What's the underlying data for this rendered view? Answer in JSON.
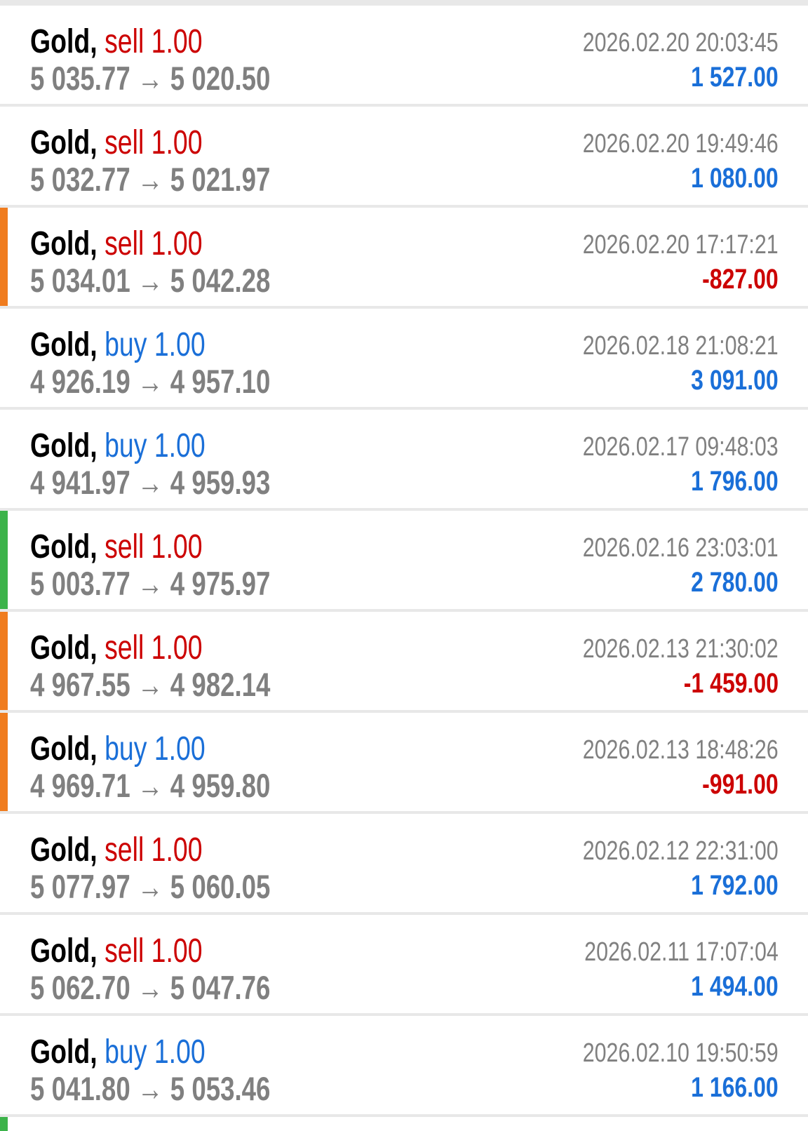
{
  "colors": {
    "buy": "#1a6fd8",
    "sell": "#cc0000",
    "profit": "#1a6fd8",
    "loss": "#cc0000",
    "marker_orange": "#f07c1e",
    "marker_green": "#3cb34a"
  },
  "arrow": "→",
  "trades": [
    {
      "symbol": "Gold,",
      "side": "sell",
      "volume": "1.00",
      "open": "5 035.77",
      "close": "5 020.50",
      "time": "2026.02.20 20:03:45",
      "profit": "1 527.00",
      "marker": null
    },
    {
      "symbol": "Gold,",
      "side": "sell",
      "volume": "1.00",
      "open": "5 032.77",
      "close": "5 021.97",
      "time": "2026.02.20 19:49:46",
      "profit": "1 080.00",
      "marker": null
    },
    {
      "symbol": "Gold,",
      "side": "sell",
      "volume": "1.00",
      "open": "5 034.01",
      "close": "5 042.28",
      "time": "2026.02.20 17:17:21",
      "profit": "-827.00",
      "marker": "orange"
    },
    {
      "symbol": "Gold,",
      "side": "buy",
      "volume": "1.00",
      "open": "4 926.19",
      "close": "4 957.10",
      "time": "2026.02.18 21:08:21",
      "profit": "3 091.00",
      "marker": null
    },
    {
      "symbol": "Gold,",
      "side": "buy",
      "volume": "1.00",
      "open": "4 941.97",
      "close": "4 959.93",
      "time": "2026.02.17 09:48:03",
      "profit": "1 796.00",
      "marker": null
    },
    {
      "symbol": "Gold,",
      "side": "sell",
      "volume": "1.00",
      "open": "5 003.77",
      "close": "4 975.97",
      "time": "2026.02.16 23:03:01",
      "profit": "2 780.00",
      "marker": "green"
    },
    {
      "symbol": "Gold,",
      "side": "sell",
      "volume": "1.00",
      "open": "4 967.55",
      "close": "4 982.14",
      "time": "2026.02.13 21:30:02",
      "profit": "-1 459.00",
      "marker": "orange"
    },
    {
      "symbol": "Gold,",
      "side": "buy",
      "volume": "1.00",
      "open": "4 969.71",
      "close": "4 959.80",
      "time": "2026.02.13 18:48:26",
      "profit": "-991.00",
      "marker": "orange"
    },
    {
      "symbol": "Gold,",
      "side": "sell",
      "volume": "1.00",
      "open": "5 077.97",
      "close": "5 060.05",
      "time": "2026.02.12 22:31:00",
      "profit": "1 792.00",
      "marker": null
    },
    {
      "symbol": "Gold,",
      "side": "sell",
      "volume": "1.00",
      "open": "5 062.70",
      "close": "5 047.76",
      "time": "2026.02.11 17:07:04",
      "profit": "1 494.00",
      "marker": null
    },
    {
      "symbol": "Gold,",
      "side": "buy",
      "volume": "1.00",
      "open": "5 041.80",
      "close": "5 053.46",
      "time": "2026.02.10 19:50:59",
      "profit": "1 166.00",
      "marker": null
    }
  ],
  "partial_row_marker": "green"
}
